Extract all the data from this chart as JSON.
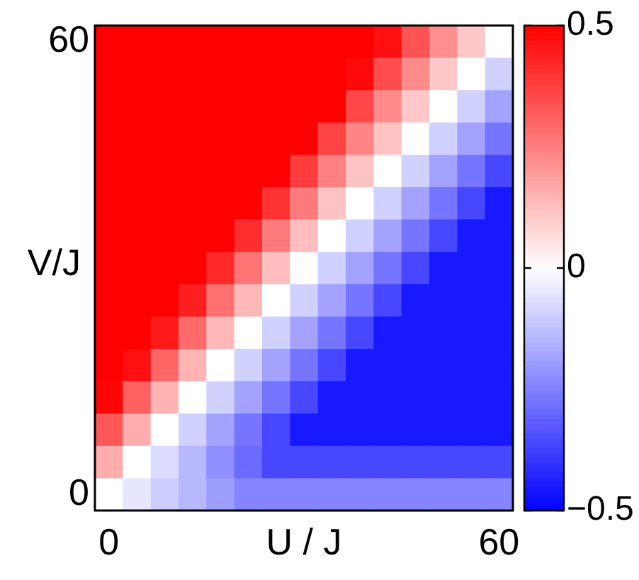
{
  "chart_data": {
    "type": "heatmap",
    "xlabel": "U / J",
    "ylabel": "V/J",
    "categories": [
      "0",
      null,
      null,
      null,
      null,
      null,
      null,
      null,
      null,
      null,
      null,
      null,
      null,
      null,
      "60"
    ],
    "y_categories": [
      "60",
      null,
      null,
      null,
      null,
      null,
      null,
      null,
      null,
      null,
      null,
      null,
      null,
      null,
      "0"
    ],
    "clim": [
      -0.5,
      0.5
    ],
    "cticks": [
      {
        "value": -0.5,
        "label": "−0.5"
      },
      0,
      0.5
    ],
    "cells": [
      [
        0.5,
        0.5,
        0.5,
        0.5,
        0.5,
        0.5,
        0.5,
        0.5,
        0.5,
        0.5,
        0.47,
        0.34,
        0.22,
        0.11,
        0
      ],
      [
        0.5,
        0.5,
        0.5,
        0.5,
        0.5,
        0.5,
        0.5,
        0.5,
        0.5,
        0.48,
        0.35,
        0.23,
        0.11,
        0,
        -0.09
      ],
      [
        0.5,
        0.5,
        0.5,
        0.5,
        0.5,
        0.5,
        0.5,
        0.5,
        0.5,
        0.36,
        0.23,
        0.11,
        0,
        -0.09,
        -0.18
      ],
      [
        0.5,
        0.5,
        0.5,
        0.5,
        0.5,
        0.5,
        0.5,
        0.5,
        0.37,
        0.24,
        0.12,
        0,
        -0.09,
        -0.18,
        -0.27
      ],
      [
        0.5,
        0.5,
        0.5,
        0.5,
        0.5,
        0.5,
        0.5,
        0.38,
        0.25,
        0.12,
        0,
        -0.09,
        -0.18,
        -0.27,
        -0.36
      ],
      [
        0.5,
        0.5,
        0.5,
        0.5,
        0.5,
        0.5,
        0.4,
        0.26,
        0.12,
        0,
        -0.09,
        -0.18,
        -0.27,
        -0.36,
        -0.45
      ],
      [
        0.5,
        0.5,
        0.5,
        0.5,
        0.5,
        0.41,
        0.26,
        0.13,
        0,
        -0.09,
        -0.18,
        -0.27,
        -0.36,
        -0.45,
        -0.45
      ],
      [
        0.5,
        0.5,
        0.5,
        0.5,
        0.42,
        0.27,
        0.13,
        0,
        -0.09,
        -0.18,
        -0.27,
        -0.36,
        -0.45,
        -0.45,
        -0.45
      ],
      [
        0.5,
        0.5,
        0.5,
        0.44,
        0.28,
        0.14,
        0,
        -0.09,
        -0.18,
        -0.27,
        -0.36,
        -0.45,
        -0.45,
        -0.45,
        -0.45
      ],
      [
        0.5,
        0.5,
        0.45,
        0.29,
        0.14,
        0,
        -0.09,
        -0.18,
        -0.27,
        -0.36,
        -0.45,
        -0.45,
        -0.45,
        -0.45,
        -0.45
      ],
      [
        0.5,
        0.47,
        0.3,
        0.15,
        0,
        -0.09,
        -0.18,
        -0.27,
        -0.36,
        -0.45,
        -0.45,
        -0.45,
        -0.45,
        -0.45,
        -0.45
      ],
      [
        0.49,
        0.31,
        0.15,
        0,
        -0.09,
        -0.18,
        -0.27,
        -0.36,
        -0.45,
        -0.45,
        -0.45,
        -0.45,
        -0.45,
        -0.45,
        -0.45
      ],
      [
        0.33,
        0.16,
        0,
        -0.09,
        -0.18,
        -0.27,
        -0.36,
        -0.45,
        -0.45,
        -0.45,
        -0.45,
        -0.45,
        -0.45,
        -0.45,
        -0.45
      ],
      [
        0.16,
        0,
        -0.07,
        -0.14,
        -0.22,
        -0.29,
        -0.36,
        -0.36,
        -0.36,
        -0.36,
        -0.36,
        -0.36,
        -0.36,
        -0.36,
        -0.36
      ],
      [
        0,
        -0.05,
        -0.1,
        -0.14,
        -0.19,
        -0.24,
        -0.24,
        -0.24,
        -0.24,
        -0.24,
        -0.24,
        -0.24,
        -0.24,
        -0.24,
        -0.24
      ]
    ]
  }
}
